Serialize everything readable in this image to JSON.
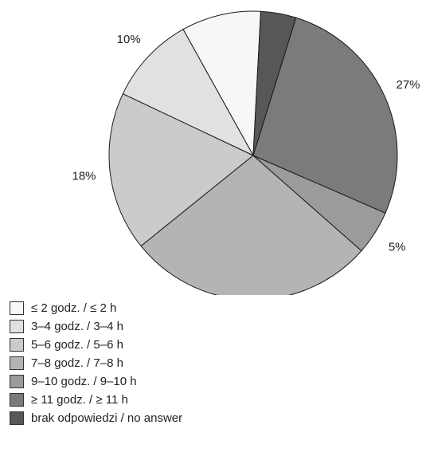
{
  "chart_data": {
    "type": "pie",
    "categories": [
      "≤ 2 godz. / ≤ 2 h",
      "3–4 godz. / 3–4 h",
      "5–6 godz. / 5–6 h",
      "7–8 godz. / 7–8 h",
      "9–10 godz. / 9–10 h",
      "≥ 11 godz. / ≥ 11 h",
      "brak odpowiedzi / no answer"
    ],
    "values": [
      9,
      10,
      18,
      28,
      5,
      27,
      4
    ],
    "labels": [
      "9%",
      "10%",
      "18%",
      "28%",
      "5%",
      "27%",
      "4%"
    ],
    "colors": [
      "#f7f7f7",
      "#e1e1e1",
      "#cbcbcb",
      "#b4b4b4",
      "#9b9b9b",
      "#7b7b7c",
      "#57575a"
    ],
    "legend_position": "bottom-left",
    "start_angle_deg": 87,
    "direction": "clockwise"
  }
}
